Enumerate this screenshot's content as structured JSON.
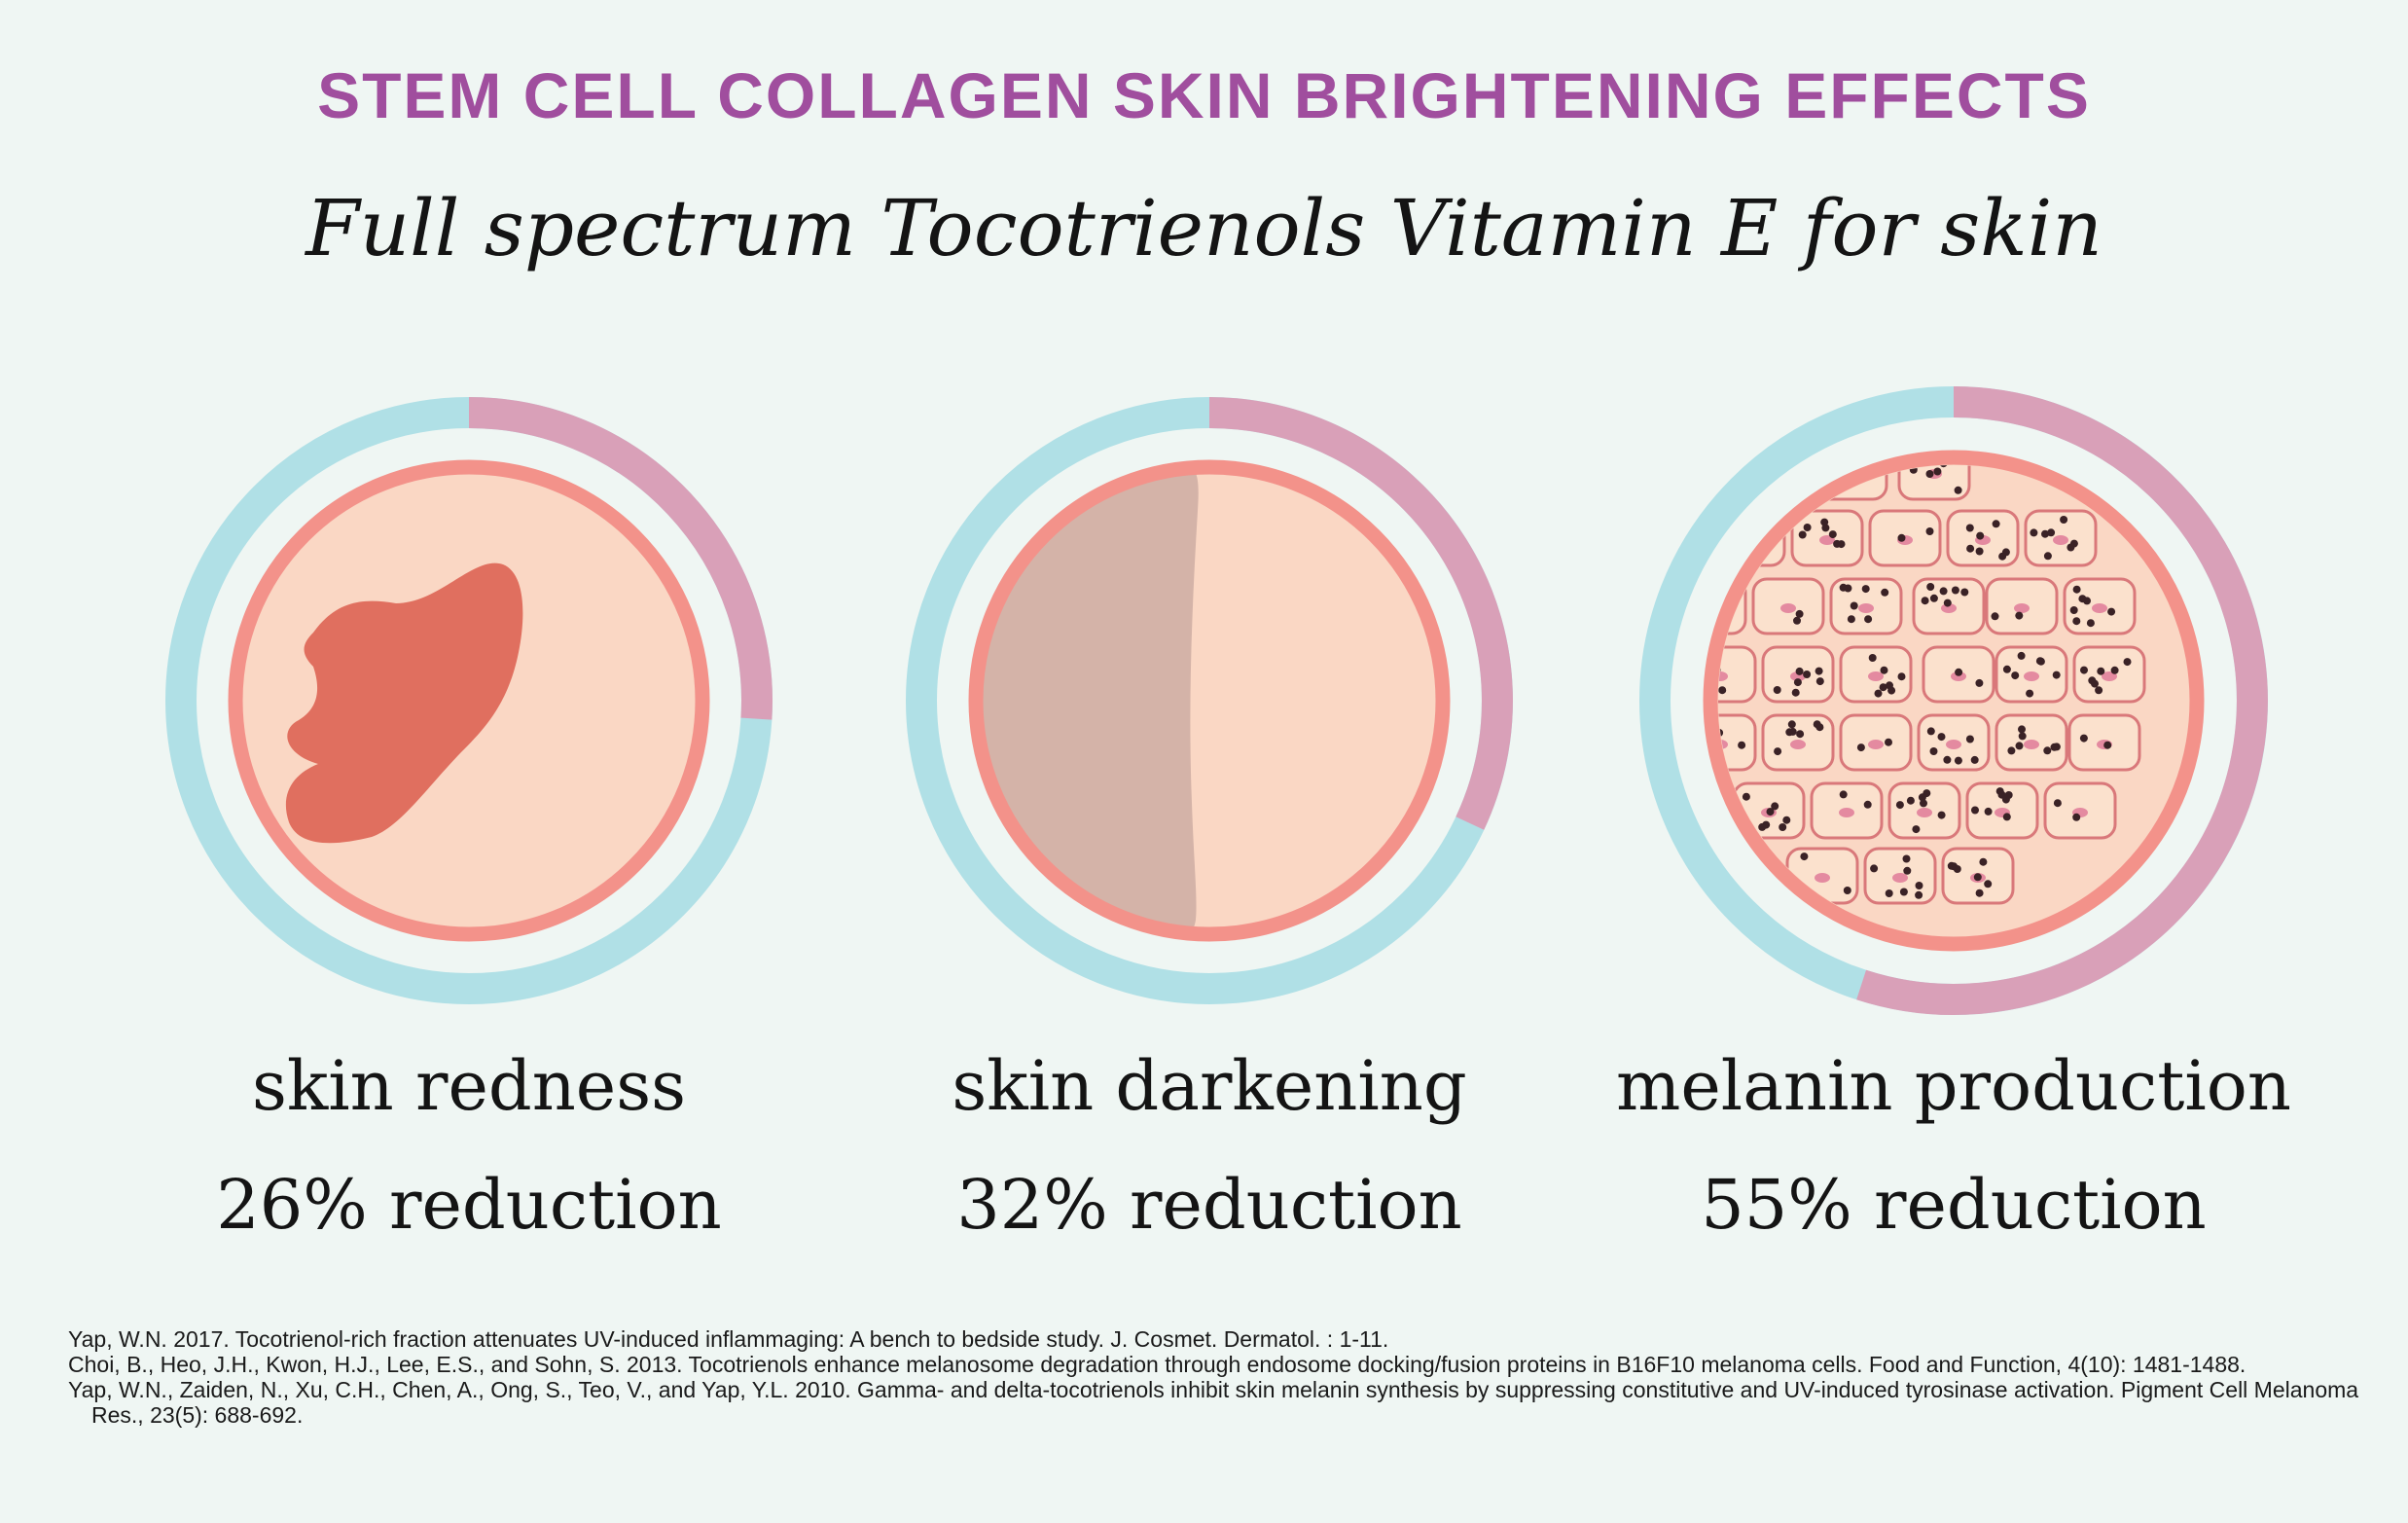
{
  "title": "STEM CELL COLLAGEN SKIN BRIGHTENING EFFECTS",
  "subtitle": "Full spectrum Tocotrienols Vitamin E for skin",
  "colors": {
    "background": "#eff6f3",
    "title": "#a04e9e",
    "ring_base": "#b0e0e6",
    "ring_effect": "#d9a0b8",
    "skin_border": "#f3928a",
    "skin_fill": "#fad7c4",
    "patch_red": "#e06f5f",
    "patch_dark": "#d4b3a8",
    "melanin_dot": "#3a2226",
    "nucleus": "#e48aa0"
  },
  "effects": [
    {
      "name": "skin redness",
      "result": "26% reduction",
      "reduction_fraction": 0.26,
      "icon": "red-patch-icon"
    },
    {
      "name": "skin darkening",
      "result": "32% reduction",
      "reduction_fraction": 0.32,
      "icon": "dark-half-icon"
    },
    {
      "name": "melanin production",
      "result": "55% reduction",
      "reduction_fraction": 0.55,
      "icon": "melanocyte-cells-icon"
    }
  ],
  "references": [
    "Yap, W.N. 2017. Tocotrienol-rich fraction attenuates UV-induced inflammaging: A bench to bedside study. J. Cosmet. Dermatol. : 1-11.",
    "Choi, B., Heo, J.H., Kwon, H.J., Lee, E.S., and Sohn, S. 2013. Tocotrienols enhance melanosome degradation through endosome docking/fusion proteins in B16F10 melanoma cells. Food and Function, 4(10): 1481-1488.",
    "Yap, W.N., Zaiden, N., Xu, C.H., Chen, A., Ong, S., Teo, V., and Yap, Y.L. 2010. Gamma- and delta-tocotrienols inhibit skin melanin synthesis by suppressing constitutive and UV-induced tyrosinase activation. Pigment Cell Melanoma Res., 23(5): 688-692."
  ]
}
